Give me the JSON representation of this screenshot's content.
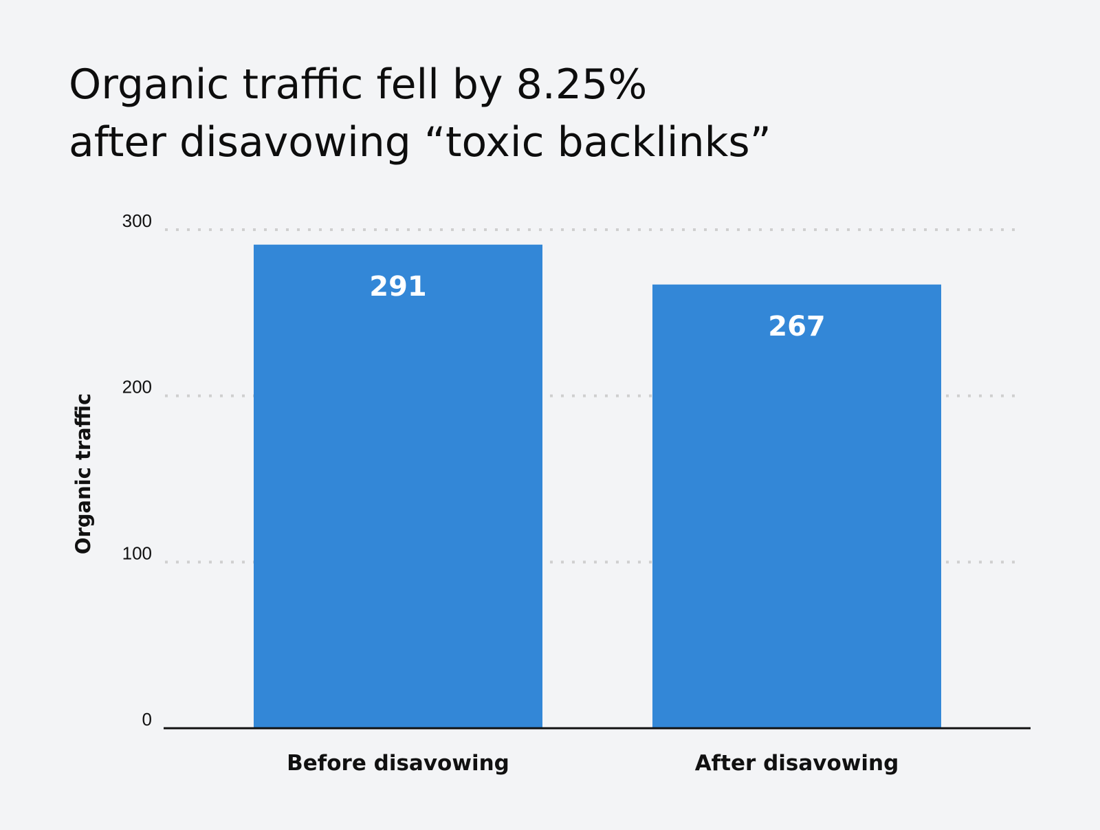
{
  "chart_data": {
    "type": "bar",
    "title_lines": [
      "Organic traffic fell by 8.25%",
      "after disavowing “toxic backlinks”"
    ],
    "categories": [
      "Before disavowing",
      "After disavowing"
    ],
    "values": [
      291,
      267
    ],
    "data_labels": [
      "291",
      "267"
    ],
    "xlabel": "",
    "ylabel": "Organic traffic",
    "ylim": [
      0,
      300
    ],
    "yticks": [
      0,
      100,
      200,
      300
    ],
    "ytick_labels": [
      "0",
      "100",
      "200",
      "300"
    ],
    "grid": "horizontal dotted",
    "legend": "none",
    "bar_color": "#3387d7",
    "background": "#f3f4f6"
  }
}
